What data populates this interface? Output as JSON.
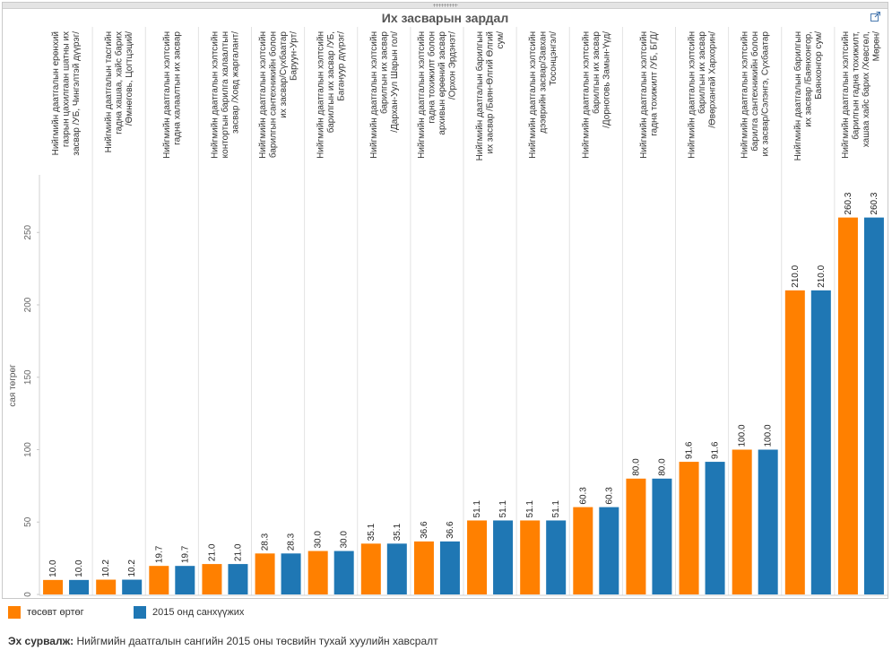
{
  "window": {
    "popout_icon": "external-link-icon"
  },
  "chart_data": {
    "type": "bar",
    "title": "Их засварын зардал",
    "ylabel": "сая төгрөг",
    "xlabel": "",
    "ylim": [
      0,
      290
    ],
    "yticks": [
      0,
      50,
      100,
      150,
      200,
      250
    ],
    "grid": false,
    "legend_position": "bottom-left",
    "categories": [
      [
        "Нийгмийн даатгалын ерөнхий",
        "газрын цахилгаан шатны их",
        "засвар /УБ, Чингэлтэй дүүрэг/"
      ],
      [
        "Нийгмийн даатгалын тасгийн",
        "гадна хашаа, хайс барих",
        "/Өмнөговь, Цогтцэций/"
      ],
      [
        "Нийгмийн даатгалын хэлтсийн",
        "гадна халаалтын их засвар"
      ],
      [
        "Нийгмийн даатгалын хэлтсийн",
        "контортын барилга халаалтын",
        "засвар /Ховд жаргалант/"
      ],
      [
        "Нийгмийн даатгалын хэлтсийн",
        "барилгын сантехникийн болон",
        "их засвар/Сүхбаатар",
        "Баруун-Урт/"
      ],
      [
        "Нийгмийн даатгалын хэлтсийн",
        "барилгын их засвар /УБ,",
        "Багануур дүүрэг/"
      ],
      [
        "Нийгмийн даатгалын хэлтсийн",
        "барилгын их засвар",
        "/Дархан-Уул Шарын гол/"
      ],
      [
        "Нийгмийн даатгалын хэлтсийн",
        "гадна тохижилт болон",
        "архивын өрөөний засвар",
        "/Орхон Эрдэнэт/"
      ],
      [
        "Нийгмийн даатгалын барилгын",
        "их засвар /Баян-Өлгий Өлгий",
        "сум/"
      ],
      [
        "Нийгмийн даатгалын хэлтсийн",
        "дээврийн засвар/Завхан",
        "Тосонцэнгэл/"
      ],
      [
        "Нийгмийн даатгалын хэлтсийн",
        "барилгын их засвар",
        "/Дорноговь Замын-Үүд/"
      ],
      [
        "Нийгмийн даатгалын хэлтсийн",
        "гадна тохижилт /УБ, БГД/"
      ],
      [
        "Нийгмийн даатгалын хэлтсийн",
        "барилгын их засвар",
        "/Өвөрхангай Хархорин/"
      ],
      [
        "Нийгмийн даатгалын хэлтсийн",
        "барилга сантехникийн болон",
        "их засвар/Сэлэнгэ, Сүхбаатар"
      ],
      [
        "Нийгмийн даатгалын барилгын",
        "их засвар /Баянхонгор,",
        "Баянхонгор сум/"
      ],
      [
        "Нийгмийн даатгалын хэлтсийн",
        "барилгын гадна тохижилт,",
        "хашаа хайс барих /Хөвсгөл,",
        "Мөрөн/"
      ]
    ],
    "series": [
      {
        "name": "төсөвт өртөг",
        "color": "#ff8000",
        "values": [
          10.0,
          10.2,
          19.7,
          21.0,
          28.3,
          30.0,
          35.1,
          36.6,
          51.1,
          51.1,
          60.3,
          80.0,
          91.6,
          100.0,
          210.0,
          260.3
        ],
        "labels": [
          "10.0",
          "10.2",
          "19.7",
          "21.0",
          "28.3",
          "30.0",
          "35.1",
          "36.6",
          "51.1",
          "51.1",
          "60.3",
          "80.0",
          "91.6",
          "100.0",
          "210.0",
          "260.3"
        ]
      },
      {
        "name": "2015 онд санхүүжих",
        "color": "#1f77b4",
        "values": [
          10.0,
          10.2,
          19.7,
          21.0,
          28.3,
          30.0,
          35.1,
          36.6,
          51.1,
          51.1,
          60.3,
          80.0,
          91.6,
          100.0,
          210.0,
          260.3
        ],
        "labels": [
          "10.0",
          "10.2",
          "19.7",
          "21.0",
          "28.3",
          "30.0",
          "35.1",
          "36.6",
          "51.1",
          "51.1",
          "60.3",
          "80.0",
          "91.6",
          "100.0",
          "210.0",
          "260.3"
        ]
      }
    ]
  },
  "source": {
    "label": "Эх сурвалж:",
    "text": "Нийгмийн даатгалын сангийн 2015 оны төсвийн тухай хуулийн хавсралт"
  }
}
